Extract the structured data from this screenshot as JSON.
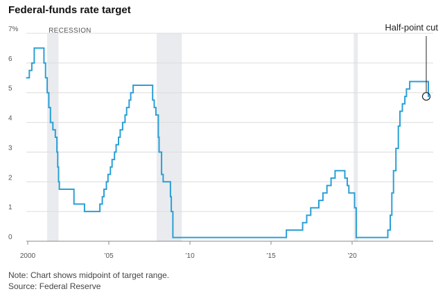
{
  "chart_data": {
    "type": "line",
    "title": "Federal-funds rate target",
    "ylim": [
      0,
      7
    ],
    "y_ticks": [
      "0",
      "1",
      "2",
      "3",
      "4",
      "5",
      "6",
      "7%"
    ],
    "x_ticks": [
      {
        "year": 2000,
        "label": "2000"
      },
      {
        "year": 2005,
        "label": "’05"
      },
      {
        "year": 2010,
        "label": "’10"
      },
      {
        "year": 2015,
        "label": "’15"
      },
      {
        "year": 2020,
        "label": "’20"
      }
    ],
    "xlim": [
      2000,
      2025
    ],
    "recession_label": "RECESSION",
    "recessions": [
      [
        2001.2,
        2001.9
      ],
      [
        2007.95,
        2009.5
      ],
      [
        2020.1,
        2020.35
      ]
    ],
    "series": [
      {
        "color": "#2a9fd6",
        "points": [
          [
            1999.9,
            5.5
          ],
          [
            2000.1,
            5.75
          ],
          [
            2000.25,
            6.0
          ],
          [
            2000.4,
            6.5
          ],
          [
            2001.0,
            6.0
          ],
          [
            2001.1,
            5.5
          ],
          [
            2001.2,
            5.0
          ],
          [
            2001.3,
            4.5
          ],
          [
            2001.4,
            4.0
          ],
          [
            2001.55,
            3.75
          ],
          [
            2001.7,
            3.5
          ],
          [
            2001.8,
            3.0
          ],
          [
            2001.85,
            2.5
          ],
          [
            2001.9,
            2.0
          ],
          [
            2001.95,
            1.75
          ],
          [
            2002.85,
            1.25
          ],
          [
            2003.5,
            1.0
          ],
          [
            2004.45,
            1.25
          ],
          [
            2004.6,
            1.5
          ],
          [
            2004.7,
            1.75
          ],
          [
            2004.85,
            2.0
          ],
          [
            2004.95,
            2.25
          ],
          [
            2005.1,
            2.5
          ],
          [
            2005.2,
            2.75
          ],
          [
            2005.35,
            3.0
          ],
          [
            2005.45,
            3.25
          ],
          [
            2005.6,
            3.5
          ],
          [
            2005.7,
            3.75
          ],
          [
            2005.85,
            4.0
          ],
          [
            2006.0,
            4.25
          ],
          [
            2006.1,
            4.5
          ],
          [
            2006.25,
            4.75
          ],
          [
            2006.35,
            5.0
          ],
          [
            2006.5,
            5.25
          ],
          [
            2007.7,
            4.75
          ],
          [
            2007.8,
            4.5
          ],
          [
            2007.9,
            4.25
          ],
          [
            2008.05,
            3.5
          ],
          [
            2008.1,
            3.0
          ],
          [
            2008.25,
            2.25
          ],
          [
            2008.35,
            2.0
          ],
          [
            2008.8,
            1.5
          ],
          [
            2008.85,
            1.0
          ],
          [
            2008.95,
            0.125
          ],
          [
            2015.95,
            0.375
          ],
          [
            2016.95,
            0.625
          ],
          [
            2017.2,
            0.875
          ],
          [
            2017.45,
            1.125
          ],
          [
            2017.95,
            1.375
          ],
          [
            2018.2,
            1.625
          ],
          [
            2018.45,
            1.875
          ],
          [
            2018.7,
            2.125
          ],
          [
            2018.95,
            2.375
          ],
          [
            2019.55,
            2.125
          ],
          [
            2019.7,
            1.875
          ],
          [
            2019.8,
            1.625
          ],
          [
            2020.15,
            1.125
          ],
          [
            2020.25,
            0.125
          ],
          [
            2022.2,
            0.375
          ],
          [
            2022.35,
            0.875
          ],
          [
            2022.45,
            1.625
          ],
          [
            2022.55,
            2.375
          ],
          [
            2022.7,
            3.125
          ],
          [
            2022.85,
            3.875
          ],
          [
            2022.95,
            4.375
          ],
          [
            2023.1,
            4.625
          ],
          [
            2023.25,
            4.875
          ],
          [
            2023.35,
            5.125
          ],
          [
            2023.55,
            5.375
          ],
          [
            2024.7,
            4.875
          ]
        ]
      }
    ],
    "annotation": {
      "text": "Half-point cut",
      "x": 2024.7,
      "y": 4.875
    }
  },
  "notes": {
    "line1": "Note: Chart shows midpoint of target range.",
    "line2": "Source: Federal Reserve"
  }
}
